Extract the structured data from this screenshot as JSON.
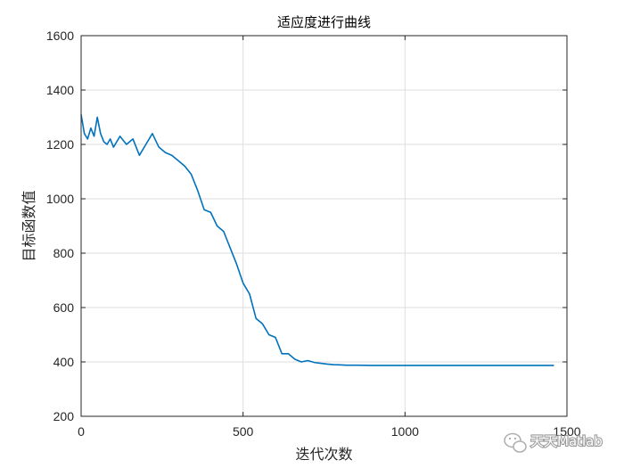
{
  "chart_data": {
    "type": "line",
    "title": "适应度进行曲线",
    "xlabel": "迭代次数",
    "ylabel": "目标函数值",
    "xlim": [
      0,
      1500
    ],
    "ylim": [
      200,
      1600
    ],
    "xticks": [
      0,
      500,
      1000,
      1500
    ],
    "yticks": [
      200,
      400,
      600,
      800,
      1000,
      1200,
      1400,
      1600
    ],
    "grid": true,
    "series": [
      {
        "color": "#0072BD",
        "x": [
          0,
          10,
          20,
          30,
          40,
          50,
          60,
          70,
          80,
          90,
          100,
          120,
          140,
          160,
          180,
          200,
          220,
          240,
          260,
          280,
          300,
          320,
          340,
          360,
          380,
          400,
          420,
          440,
          460,
          480,
          500,
          520,
          540,
          560,
          580,
          600,
          620,
          640,
          660,
          680,
          700,
          720,
          740,
          760,
          780,
          800,
          820,
          850,
          900,
          1000,
          1100,
          1200,
          1300,
          1400,
          1460
        ],
        "y": [
          1310,
          1240,
          1220,
          1260,
          1230,
          1300,
          1240,
          1210,
          1200,
          1220,
          1190,
          1230,
          1200,
          1220,
          1160,
          1200,
          1240,
          1190,
          1170,
          1160,
          1140,
          1120,
          1090,
          1030,
          960,
          950,
          900,
          880,
          820,
          760,
          690,
          650,
          560,
          540,
          500,
          490,
          430,
          430,
          410,
          400,
          405,
          398,
          395,
          392,
          390,
          389,
          388,
          388,
          387,
          387,
          387,
          387,
          387,
          387,
          387
        ]
      }
    ]
  },
  "watermark": {
    "text": "天天Matlab"
  }
}
